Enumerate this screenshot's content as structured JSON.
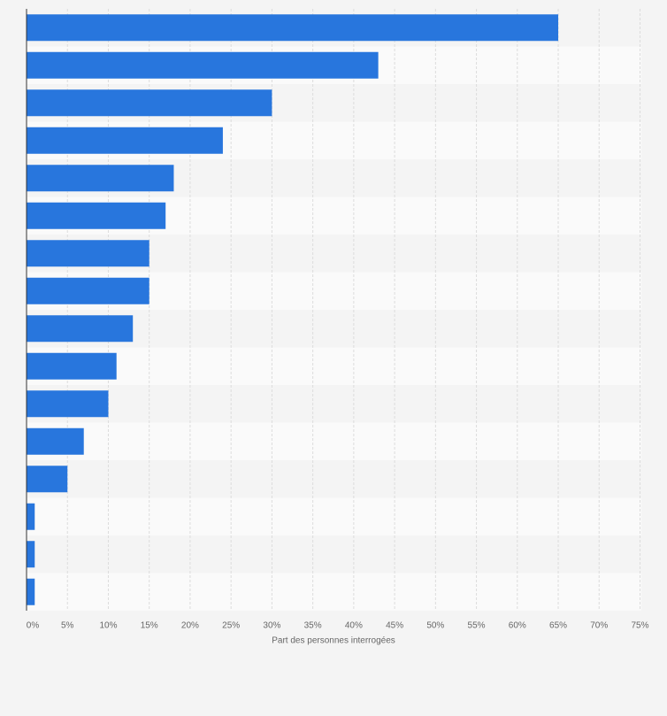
{
  "chart_data": {
    "type": "barh",
    "categories": [
      null,
      null,
      null,
      null,
      null,
      null,
      null,
      null,
      null,
      null,
      null,
      null,
      null,
      null,
      null,
      null
    ],
    "values": [
      65,
      43,
      30,
      24,
      18,
      17,
      15,
      15,
      13,
      11,
      10,
      7,
      5,
      1,
      1,
      1
    ],
    "color": "#2876dd",
    "xlabel": "Part des personnes interrogées",
    "xlim": [
      0,
      75
    ],
    "xticks": [
      {
        "value": 0,
        "label": "0%"
      },
      {
        "value": 5,
        "label": "5%"
      },
      {
        "value": 10,
        "label": "10%"
      },
      {
        "value": 15,
        "label": "15%"
      },
      {
        "value": 20,
        "label": "20%"
      },
      {
        "value": 25,
        "label": "25%"
      },
      {
        "value": 30,
        "label": "30%"
      },
      {
        "value": 35,
        "label": "35%"
      },
      {
        "value": 40,
        "label": "40%"
      },
      {
        "value": 45,
        "label": "45%"
      },
      {
        "value": 50,
        "label": "50%"
      },
      {
        "value": 55,
        "label": "55%"
      },
      {
        "value": 60,
        "label": "60%"
      },
      {
        "value": 65,
        "label": "65%"
      },
      {
        "value": 70,
        "label": "70%"
      },
      {
        "value": 75,
        "label": "75%"
      }
    ],
    "grid": true
  }
}
